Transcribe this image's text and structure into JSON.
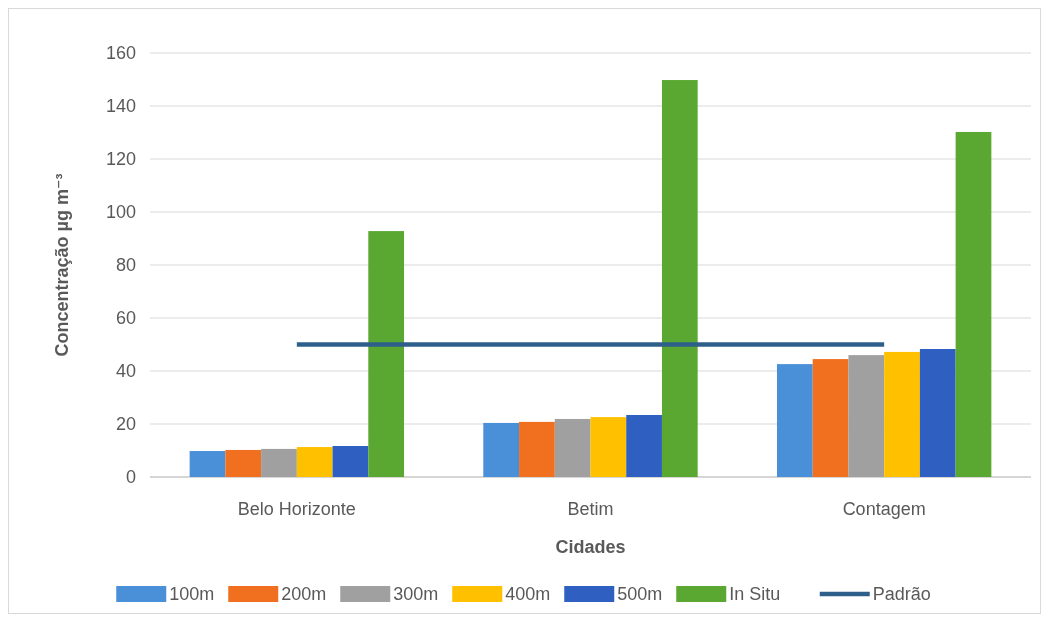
{
  "chart_data": {
    "type": "bar",
    "xlabel": "Cidades",
    "ylabel": "Concentração µg m⁻³",
    "categories": [
      "Belo Horizonte",
      "Betim",
      "Contagem"
    ],
    "series": [
      {
        "name": "100m",
        "color": "#4a90d9",
        "values": [
          9.8,
          20.4,
          42.6
        ]
      },
      {
        "name": "200m",
        "color": "#f07020",
        "values": [
          10.2,
          20.8,
          44.5
        ]
      },
      {
        "name": "300m",
        "color": "#a0a0a0",
        "values": [
          10.6,
          21.9,
          46
        ]
      },
      {
        "name": "400m",
        "color": "#ffc000",
        "values": [
          11.3,
          22.6,
          47.2
        ]
      },
      {
        "name": "500m",
        "color": "#2f5fc0",
        "values": [
          11.7,
          23.4,
          48.3
        ]
      },
      {
        "name": "In Situ",
        "color": "#5aa832",
        "values": [
          92.8,
          149.8,
          130.2
        ]
      },
      {
        "name": "Padrão",
        "type": "line",
        "color": "#2e5f8a",
        "values": [
          50,
          50,
          50
        ]
      }
    ],
    "ylim": [
      0,
      160
    ],
    "yticks": [
      0,
      20,
      40,
      60,
      80,
      100,
      120,
      140,
      160
    ],
    "grid": "y",
    "legend": "bottom"
  }
}
